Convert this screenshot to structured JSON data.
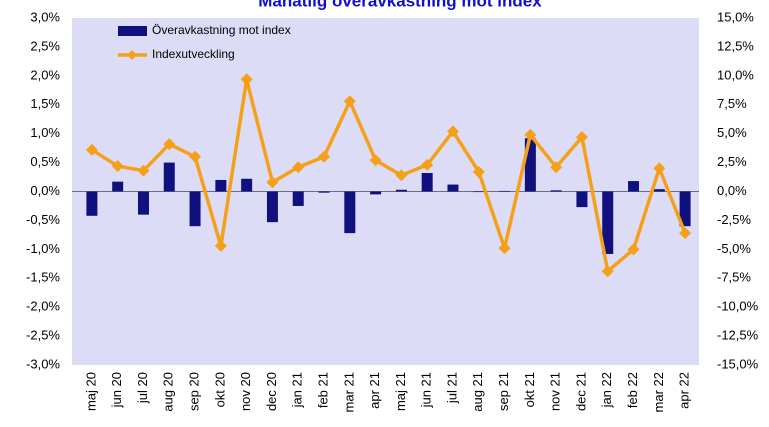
{
  "chart_data": {
    "type": "bar_line",
    "title": "Månatlig överavkastning mot index",
    "categories": [
      "maj 20",
      "jun 20",
      "jul 20",
      "aug 20",
      "sep 20",
      "okt 20",
      "nov 20",
      "dec 20",
      "jan 21",
      "feb 21",
      "mar 21",
      "apr 21",
      "maj 21",
      "jun 21",
      "jul 21",
      "aug 21",
      "sep 21",
      "okt 21",
      "nov 21",
      "dec 21",
      "jan 22",
      "feb 22",
      "mar 22",
      "apr 22"
    ],
    "series": [
      {
        "name": "Överavkastning mot index",
        "type": "bar",
        "color": "#10107f",
        "values": [
          -0.42,
          0.17,
          -0.4,
          0.5,
          -0.6,
          0.2,
          0.22,
          -0.53,
          -0.25,
          -0.02,
          -0.72,
          -0.05,
          0.03,
          0.32,
          0.12,
          -0.01,
          0.01,
          0.92,
          0.02,
          -0.27,
          -1.08,
          0.18,
          0.04,
          -0.6
        ]
      },
      {
        "name": "Indexutveckling",
        "type": "line",
        "axis": "y2",
        "color": "#f5a01a",
        "values": [
          3.6,
          2.2,
          1.8,
          4.1,
          3.0,
          -4.7,
          9.7,
          0.8,
          2.1,
          3.0,
          7.8,
          2.7,
          1.4,
          2.3,
          5.2,
          1.7,
          -4.9,
          4.9,
          2.1,
          4.7,
          -6.9,
          -5.0,
          2.0,
          -3.6
        ]
      }
    ],
    "ylim": [
      -3.0,
      3.0
    ],
    "yticks": [
      {
        "value": 3.0,
        "label": "3,0%"
      },
      {
        "value": 2.5,
        "label": "2,5%"
      },
      {
        "value": 2.0,
        "label": "2,0%"
      },
      {
        "value": 1.5,
        "label": "1,5%"
      },
      {
        "value": 1.0,
        "label": "1,0%"
      },
      {
        "value": 0.5,
        "label": "0,5%"
      },
      {
        "value": 0.0,
        "label": "0,0%"
      },
      {
        "value": -0.5,
        "label": "-0,5%"
      },
      {
        "value": -1.0,
        "label": "-1,0%"
      },
      {
        "value": -1.5,
        "label": "-1,5%"
      },
      {
        "value": -2.0,
        "label": "-2,0%"
      },
      {
        "value": -2.5,
        "label": "-2,5%"
      },
      {
        "value": -3.0,
        "label": "-3,0%"
      }
    ],
    "y2lim": [
      -15.0,
      15.0
    ],
    "y2ticks": [
      {
        "value": 15.0,
        "label": "15,0%"
      },
      {
        "value": 12.5,
        "label": "12,5%"
      },
      {
        "value": 10.0,
        "label": "10,0%"
      },
      {
        "value": 7.5,
        "label": "7,5%"
      },
      {
        "value": 5.0,
        "label": "5,0%"
      },
      {
        "value": 2.5,
        "label": "2,5%"
      },
      {
        "value": 0.0,
        "label": "0,0%"
      },
      {
        "value": -2.5,
        "label": "-2,5%"
      },
      {
        "value": -5.0,
        "label": "-5,0%"
      },
      {
        "value": -7.5,
        "label": "-7,5%"
      },
      {
        "value": -10.0,
        "label": "-10,0%"
      },
      {
        "value": -12.5,
        "label": "-12,5%"
      },
      {
        "value": -15.0,
        "label": "-15,0%"
      }
    ],
    "legend": "upper left"
  }
}
